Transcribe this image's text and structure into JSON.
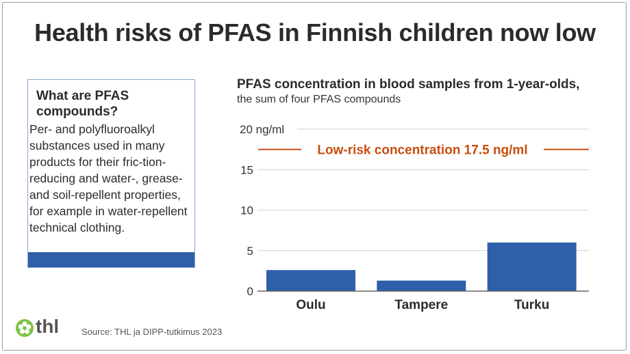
{
  "title": "Health risks of PFAS in Finnish children now low",
  "info": {
    "heading": "What are PFAS compounds?",
    "text": "Per- and polyfluoroalkyl substances used in many products for their fric-tion-reducing and water-, grease- and soil-repellent properties, for example in water-repellent technical clothing."
  },
  "footer": {
    "logo": "thl",
    "source": "Source: THL ja DIPP-tutkimus 2023"
  },
  "colors": {
    "bar": "#2f5faa",
    "threshold": "#c84d0e",
    "logo_green": "#7cc242"
  },
  "chart_data": {
    "type": "bar",
    "title": "PFAS concentration in blood samples from 1-year-olds,",
    "subtitle": "the sum of four PFAS compounds",
    "categories": [
      "Oulu",
      "Tampere",
      "Turku"
    ],
    "values": [
      2.6,
      1.3,
      6.0
    ],
    "ylim": [
      0,
      20
    ],
    "yticks": [
      0,
      5,
      10,
      15,
      20
    ],
    "ytick_labels": [
      "0",
      "5",
      "10",
      "15",
      "20 ng/ml"
    ],
    "grid": true,
    "threshold": {
      "value": 17.5,
      "label": "Low-risk concentration 17.5 ng/ml"
    }
  }
}
